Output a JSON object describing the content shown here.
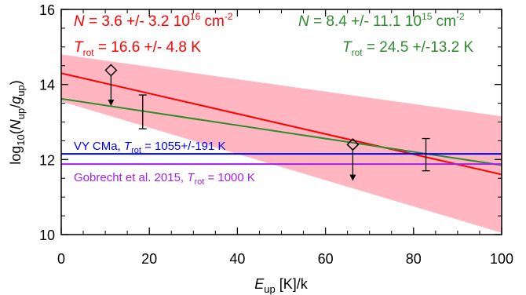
{
  "chart_data": {
    "type": "line",
    "xlim": [
      0,
      100
    ],
    "ylim": [
      10,
      16
    ],
    "x_ticks": [
      0,
      20,
      40,
      60,
      80,
      100
    ],
    "y_ticks": [
      10,
      12,
      14,
      16
    ],
    "xlabel": {
      "var": "E",
      "sub": "up",
      "rest": " [K]/k"
    },
    "ylabel": {
      "pre": "log",
      "pre_sub": "10",
      "open": "(",
      "num": "N",
      "num_sub": "up",
      "slash": "/",
      "den": "g",
      "den_sub": "up",
      "close": ")"
    },
    "colors": {
      "red": "#ff0000",
      "green": "#2e8b2e",
      "blue": "#0000ff",
      "purple": "#a020f0",
      "band": "#ffb6c1",
      "black": "#000000"
    },
    "band": {
      "x": [
        0,
        100
      ],
      "upper": [
        14.8,
        13.15
      ],
      "lower": [
        13.55,
        10.05
      ]
    },
    "series": [
      {
        "key": "red",
        "x": [
          0,
          100
        ],
        "y": [
          14.3,
          11.6
        ]
      },
      {
        "key": "green",
        "x": [
          0,
          100
        ],
        "y": [
          13.62,
          11.85
        ]
      },
      {
        "key": "blue",
        "x": [
          0,
          100
        ],
        "y": [
          12.15,
          12.15
        ]
      },
      {
        "key": "purple",
        "x": [
          0,
          100
        ],
        "y": [
          11.88,
          11.88
        ]
      }
    ],
    "error_points": [
      {
        "x": 18.5,
        "y": 13.27,
        "ylow": 12.82,
        "yhigh": 13.72
      },
      {
        "x": 82.8,
        "y": 12.13,
        "ylow": 11.7,
        "yhigh": 12.56
      }
    ],
    "upper_limits": [
      {
        "x": 11.3,
        "y": 14.38,
        "arrow_to": 13.45
      },
      {
        "x": 66.2,
        "y": 12.4,
        "arrow_to": 11.45
      }
    ],
    "annotations": {
      "red_n": {
        "var": "N",
        "text": " = 3.6 +/-  3.2 10",
        "sup": "16",
        "unit": " cm",
        "unit_sup": "-2"
      },
      "red_t": {
        "var": "T",
        "sub": "rot",
        "text": " =  16.6 +/- 4.8 K"
      },
      "green_n": {
        "var": "N",
        "text": " = 8.4 +/- 11.1 10",
        "sup": "15",
        "unit": " cm",
        "unit_sup": "-2"
      },
      "green_t": {
        "var": "T",
        "sub": "rot",
        "text": " =  24.5 +/-13.2 K"
      },
      "blue": {
        "pre": "VY CMa, ",
        "var": "T",
        "sub": "rot",
        "text": " = 1055+/-191 K"
      },
      "purple": {
        "pre": "Gobrecht et al. 2015, ",
        "var": "T",
        "sub": "rot",
        "text": " = 1000 K"
      }
    }
  }
}
